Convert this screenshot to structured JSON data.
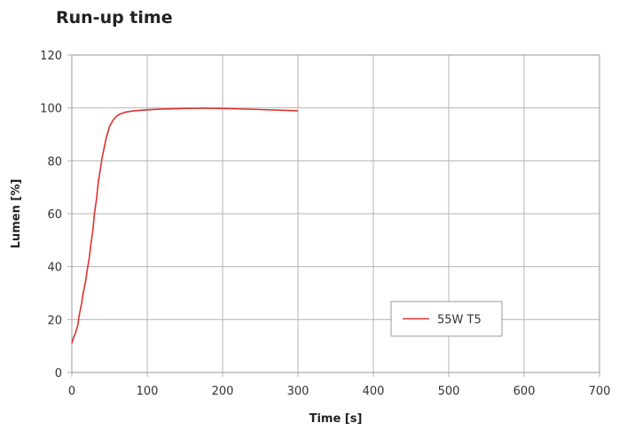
{
  "chart_data": {
    "type": "line",
    "title": "Run-up time",
    "xlabel": "Time [s]",
    "ylabel": "Lumen [%]",
    "xlim": [
      0,
      700
    ],
    "ylim": [
      0,
      120
    ],
    "xticks": [
      0,
      100,
      200,
      300,
      400,
      500,
      600,
      700
    ],
    "yticks": [
      0,
      20,
      40,
      60,
      80,
      100,
      120
    ],
    "grid": true,
    "legend_position": "bottom-right",
    "series": [
      {
        "name": "55W T5",
        "color": "#e03030",
        "x": [
          0,
          2,
          5,
          8,
          10,
          13,
          15,
          18,
          20,
          23,
          25,
          28,
          30,
          33,
          35,
          38,
          40,
          43,
          45,
          48,
          50,
          55,
          60,
          65,
          70,
          80,
          90,
          100,
          120,
          150,
          175,
          200,
          250,
          300
        ],
        "y": [
          11,
          13,
          15,
          18,
          22,
          26,
          30,
          34,
          38,
          43,
          48,
          54,
          60,
          66,
          72,
          77,
          81,
          85,
          88,
          91,
          93,
          95.5,
          97,
          97.8,
          98.3,
          98.8,
          99.1,
          99.3,
          99.6,
          99.8,
          99.9,
          99.8,
          99.4,
          98.9
        ]
      }
    ]
  }
}
